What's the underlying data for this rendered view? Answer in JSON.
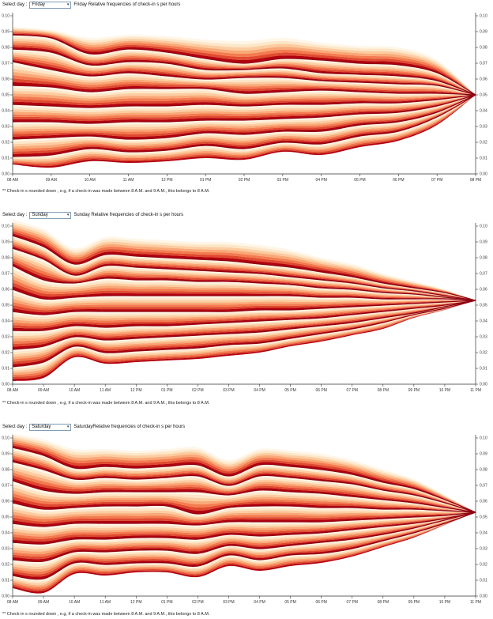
{
  "panels": [
    {
      "select_label": "Select day :",
      "selected_day": "Friday",
      "caption": "Friday Relative frequencies of check-in s per hours",
      "footnote": "** Check-in s rounded down , e.g, if a check-in was made between 8 A.M. and 9 A.M., this belongs to 8 A.M.",
      "chart_data": {
        "type": "area",
        "title": "Friday Relative frequencies of check-in s per hours",
        "categories": [
          "08 AM",
          "09 AM",
          "10 AM",
          "11 AM",
          "12 PM",
          "01 PM",
          "02 PM",
          "03 PM",
          "04 PM",
          "05 PM",
          "06 PM",
          "07 PM",
          "08 PM"
        ],
        "ylim": [
          0,
          0.1
        ],
        "yticks": [
          "0.00",
          "0.01",
          "0.02",
          "0.03",
          "0.04",
          "0.05",
          "0.06",
          "0.07",
          "0.08",
          "0.09",
          "0.10"
        ],
        "converge": 0.05,
        "bands": {
          "top": [
            0.093,
            0.091,
            0.086,
            0.088,
            0.087,
            0.085,
            0.084,
            0.086,
            0.083,
            0.081,
            0.08,
            0.072,
            0.05
          ],
          "bottom": [
            0.006,
            0.004,
            0.008,
            0.007,
            0.008,
            0.01,
            0.009,
            0.014,
            0.012,
            0.017,
            0.021,
            0.031,
            0.05
          ],
          "strands": [
            [
              0.088,
              0.086,
              0.076,
              0.079,
              0.077,
              0.073,
              0.07,
              0.073,
              0.072,
              0.07,
              0.069,
              0.064,
              0.05
            ],
            [
              0.079,
              0.077,
              0.069,
              0.071,
              0.07,
              0.066,
              0.066,
              0.067,
              0.064,
              0.063,
              0.062,
              0.059,
              0.05
            ],
            [
              0.071,
              0.066,
              0.062,
              0.064,
              0.062,
              0.06,
              0.061,
              0.061,
              0.059,
              0.058,
              0.057,
              0.056,
              0.05
            ],
            [
              0.056,
              0.055,
              0.052,
              0.054,
              0.054,
              0.054,
              0.051,
              0.052,
              0.053,
              0.052,
              0.051,
              0.051,
              0.05
            ],
            [
              0.044,
              0.043,
              0.042,
              0.043,
              0.043,
              0.044,
              0.043,
              0.044,
              0.044,
              0.045,
              0.045,
              0.047,
              0.05
            ],
            [
              0.033,
              0.033,
              0.032,
              0.033,
              0.033,
              0.034,
              0.034,
              0.035,
              0.036,
              0.038,
              0.039,
              0.043,
              0.05
            ],
            [
              0.022,
              0.023,
              0.024,
              0.022,
              0.023,
              0.026,
              0.025,
              0.027,
              0.027,
              0.031,
              0.033,
              0.039,
              0.05
            ],
            [
              0.011,
              0.012,
              0.016,
              0.014,
              0.015,
              0.018,
              0.016,
              0.02,
              0.019,
              0.024,
              0.027,
              0.036,
              0.05
            ]
          ]
        }
      }
    },
    {
      "select_label": "Select day :",
      "selected_day": "Sunday",
      "caption": "Sunday Relative frequencies of check-in s per hours",
      "footnote": "** Check-in s rounded down , e.g, if a check-in was made between 8 A.M. and 9 A.M., this belongs to 8 A.M.",
      "chart_data": {
        "type": "area",
        "title": "Sunday Relative frequencies of check-in s per hours",
        "categories": [
          "08 AM",
          "09 AM",
          "10 AM",
          "11 AM",
          "12 PM",
          "01 PM",
          "02 PM",
          "03 PM",
          "04 PM",
          "05 PM",
          "06 PM",
          "07 PM",
          "08 PM",
          "09 PM",
          "10 PM",
          "11 PM"
        ],
        "ylim": [
          0,
          0.1
        ],
        "yticks": [
          "0.00",
          "0.01",
          "0.02",
          "0.03",
          "0.04",
          "0.05",
          "0.06",
          "0.07",
          "0.08",
          "0.09",
          "0.10"
        ],
        "converge": 0.053,
        "bands": {
          "top": [
            0.104,
            0.098,
            0.086,
            0.093,
            0.092,
            0.091,
            0.09,
            0.09,
            0.088,
            0.085,
            0.08,
            0.076,
            0.07,
            0.065,
            0.06,
            0.053
          ],
          "bottom": [
            0.002,
            0.004,
            0.017,
            0.013,
            0.014,
            0.015,
            0.016,
            0.018,
            0.02,
            0.024,
            0.027,
            0.031,
            0.035,
            0.042,
            0.047,
            0.053
          ],
          "strands": [
            [
              0.094,
              0.087,
              0.076,
              0.082,
              0.081,
              0.08,
              0.079,
              0.078,
              0.076,
              0.074,
              0.071,
              0.068,
              0.064,
              0.061,
              0.058,
              0.053
            ],
            [
              0.086,
              0.079,
              0.069,
              0.075,
              0.074,
              0.073,
              0.072,
              0.071,
              0.07,
              0.068,
              0.066,
              0.064,
              0.061,
              0.059,
              0.056,
              0.053
            ],
            [
              0.075,
              0.066,
              0.064,
              0.067,
              0.066,
              0.066,
              0.065,
              0.065,
              0.064,
              0.063,
              0.061,
              0.06,
              0.058,
              0.057,
              0.055,
              0.053
            ],
            [
              0.06,
              0.054,
              0.055,
              0.056,
              0.056,
              0.056,
              0.056,
              0.056,
              0.056,
              0.056,
              0.055,
              0.055,
              0.054,
              0.054,
              0.054,
              0.053
            ],
            [
              0.046,
              0.044,
              0.046,
              0.046,
              0.046,
              0.046,
              0.046,
              0.046,
              0.047,
              0.047,
              0.048,
              0.049,
              0.05,
              0.051,
              0.052,
              0.053
            ],
            [
              0.034,
              0.034,
              0.037,
              0.036,
              0.037,
              0.037,
              0.038,
              0.039,
              0.04,
              0.041,
              0.042,
              0.044,
              0.046,
              0.048,
              0.05,
              0.053
            ],
            [
              0.022,
              0.024,
              0.03,
              0.028,
              0.029,
              0.03,
              0.031,
              0.032,
              0.033,
              0.035,
              0.037,
              0.039,
              0.042,
              0.045,
              0.049,
              0.053
            ],
            [
              0.011,
              0.014,
              0.024,
              0.02,
              0.021,
              0.022,
              0.023,
              0.025,
              0.026,
              0.029,
              0.032,
              0.035,
              0.039,
              0.044,
              0.048,
              0.053
            ]
          ]
        }
      }
    },
    {
      "select_label": "Select day :",
      "selected_day": "Saturday",
      "caption": "SaturdayRelative frequencies of check-in s per hours",
      "footnote": "** Check-in s rounded down , e.g, if a check-in was made between 8 A.M. and 9 A.M., this belongs to 8 A.M.",
      "chart_data": {
        "type": "area",
        "title": "SaturdayRelative frequencies of check-in s per hours",
        "categories": [
          "08 AM",
          "09 AM",
          "10 AM",
          "11 AM",
          "12 PM",
          "01 PM",
          "02 PM",
          "03 PM",
          "04 PM",
          "05 PM",
          "06 PM",
          "07 PM",
          "08 PM",
          "09 PM",
          "10 PM",
          "11 PM"
        ],
        "ylim": [
          0,
          0.1
        ],
        "yticks": [
          "0.00",
          "0.01",
          "0.02",
          "0.03",
          "0.04",
          "0.05",
          "0.06",
          "0.07",
          "0.08",
          "0.09",
          "0.10"
        ],
        "converge": 0.053,
        "bands": {
          "top": [
            0.103,
            0.099,
            0.093,
            0.093,
            0.092,
            0.093,
            0.094,
            0.086,
            0.093,
            0.092,
            0.09,
            0.086,
            0.08,
            0.074,
            0.064,
            0.053
          ],
          "bottom": [
            0.005,
            0.002,
            0.014,
            0.013,
            0.015,
            0.015,
            0.012,
            0.019,
            0.016,
            0.019,
            0.021,
            0.025,
            0.031,
            0.037,
            0.045,
            0.053
          ],
          "strands": [
            [
              0.094,
              0.089,
              0.081,
              0.082,
              0.081,
              0.082,
              0.083,
              0.076,
              0.083,
              0.082,
              0.08,
              0.077,
              0.072,
              0.068,
              0.061,
              0.053
            ],
            [
              0.085,
              0.08,
              0.074,
              0.075,
              0.074,
              0.075,
              0.076,
              0.07,
              0.076,
              0.075,
              0.073,
              0.071,
              0.067,
              0.064,
              0.059,
              0.053
            ],
            [
              0.073,
              0.067,
              0.065,
              0.066,
              0.066,
              0.066,
              0.066,
              0.064,
              0.067,
              0.066,
              0.065,
              0.063,
              0.061,
              0.059,
              0.056,
              0.053
            ],
            [
              0.059,
              0.055,
              0.056,
              0.057,
              0.057,
              0.057,
              0.052,
              0.056,
              0.057,
              0.057,
              0.056,
              0.056,
              0.055,
              0.055,
              0.054,
              0.053
            ],
            [
              0.046,
              0.044,
              0.046,
              0.046,
              0.046,
              0.046,
              0.045,
              0.047,
              0.047,
              0.047,
              0.047,
              0.048,
              0.049,
              0.05,
              0.051,
              0.053
            ],
            [
              0.034,
              0.033,
              0.036,
              0.036,
              0.037,
              0.037,
              0.036,
              0.039,
              0.038,
              0.039,
              0.04,
              0.042,
              0.044,
              0.046,
              0.049,
              0.053
            ],
            [
              0.023,
              0.022,
              0.028,
              0.028,
              0.029,
              0.029,
              0.027,
              0.032,
              0.03,
              0.032,
              0.034,
              0.036,
              0.039,
              0.043,
              0.048,
              0.053
            ],
            [
              0.013,
              0.011,
              0.021,
              0.02,
              0.021,
              0.021,
              0.019,
              0.026,
              0.023,
              0.026,
              0.027,
              0.03,
              0.035,
              0.04,
              0.046,
              0.053
            ]
          ]
        }
      }
    }
  ],
  "colors": {
    "band_palette": [
      "#b2000e",
      "#e04a2e",
      "#f47b50",
      "#f9a877",
      "#fccca0",
      "#fde7c9",
      "#fff6e8"
    ],
    "strand": "#8e0012",
    "axis": "#333333",
    "select_border": "#7f9db9"
  },
  "icons": {
    "select_caret": "chevron-down-icon"
  }
}
